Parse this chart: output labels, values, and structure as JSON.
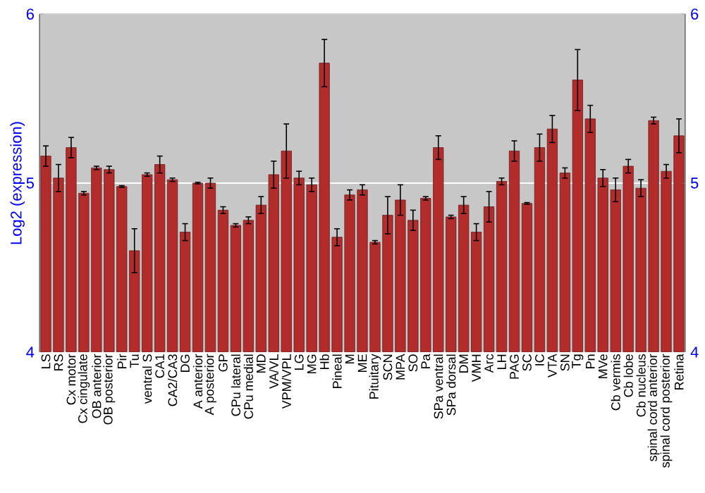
{
  "chart_data": {
    "type": "bar",
    "ylabel": "Log2 (expression)",
    "categories": [
      "LS",
      "RS",
      "Cx motor",
      "Cx cingulate",
      "OB anterior",
      "OB posterior",
      "Pir",
      "Tu",
      "ventral S",
      "CA1",
      "CA2/CA3",
      "DG",
      "A anterior",
      "A posterior",
      "GP",
      "CPu lateral",
      "CPu medial",
      "MD",
      "VA/VL",
      "VPM/VPL",
      "LG",
      "MG",
      "Hb",
      "Pineal",
      "M",
      "ME",
      "Pituitary",
      "SCN",
      "MPA",
      "SO",
      "Pa",
      "SPa ventral",
      "SPa dorsal",
      "DM",
      "VMH",
      "Arc",
      "LH",
      "PAG",
      "SC",
      "IC",
      "VTA",
      "SN",
      "Tg",
      "Pn",
      "MVe",
      "Cb vermis",
      "Cb lobe",
      "Cb nucleus",
      "spinal cord anterior",
      "spinal cord posterior",
      "Retina"
    ],
    "values": [
      5.16,
      5.03,
      5.21,
      4.94,
      5.09,
      5.08,
      4.98,
      4.6,
      5.05,
      5.11,
      5.02,
      4.71,
      5.0,
      5.0,
      4.84,
      4.75,
      4.78,
      4.87,
      5.05,
      5.19,
      5.03,
      4.99,
      5.71,
      4.68,
      4.93,
      4.96,
      4.65,
      4.81,
      4.9,
      4.78,
      4.91,
      5.21,
      4.8,
      4.87,
      4.71,
      4.86,
      5.01,
      5.19,
      4.88,
      5.21,
      5.32,
      5.06,
      5.61,
      5.38,
      5.03,
      4.96,
      5.1,
      4.97,
      5.37,
      5.07,
      5.28
    ],
    "errors": [
      0.06,
      0.08,
      0.06,
      0.01,
      0.01,
      0.02,
      0.005,
      0.13,
      0.01,
      0.05,
      0.01,
      0.05,
      0.005,
      0.03,
      0.02,
      0.01,
      0.02,
      0.05,
      0.08,
      0.16,
      0.04,
      0.04,
      0.14,
      0.05,
      0.03,
      0.03,
      0.01,
      0.11,
      0.09,
      0.06,
      0.01,
      0.07,
      0.01,
      0.05,
      0.05,
      0.09,
      0.02,
      0.06,
      0.005,
      0.08,
      0.08,
      0.03,
      0.18,
      0.08,
      0.05,
      0.07,
      0.04,
      0.05,
      0.02,
      0.04,
      0.1
    ],
    "color": "#b22c2c",
    "ylim": [
      4,
      6
    ],
    "yticks": [
      4,
      5,
      6
    ],
    "y2lim": [
      4,
      6
    ],
    "y2ticks": [
      4,
      5,
      6
    ],
    "grid": "y"
  }
}
